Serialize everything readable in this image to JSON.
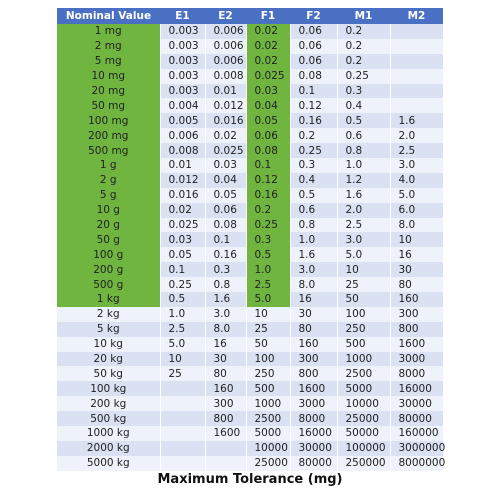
{
  "table": {
    "header": [
      "Nominal Value",
      "E1",
      "E2",
      "F1",
      "F2",
      "M1",
      "M2"
    ],
    "rows": [
      [
        "1 mg",
        "0.003",
        "0.006",
        "0.02",
        "0.06",
        "0.2",
        null
      ],
      [
        "2 mg",
        "0.003",
        "0.006",
        "0.02",
        "0.06",
        "0.2",
        null
      ],
      [
        "5 mg",
        "0.003",
        "0.006",
        "0.02",
        "0.06",
        "0.2",
        null
      ],
      [
        "10 mg",
        "0.003",
        "0.008",
        "0.025",
        "0.08",
        "0.25",
        null
      ],
      [
        "20 mg",
        "0.003",
        "0.01",
        "0.03",
        "0.1",
        "0.3",
        null
      ],
      [
        "50 mg",
        "0.004",
        "0.012",
        "0.04",
        "0.12",
        "0.4",
        null
      ],
      [
        "100 mg",
        "0.005",
        "0.016",
        "0.05",
        "0.16",
        "0.5",
        "1.6"
      ],
      [
        "200 mg",
        "0.006",
        "0.02",
        "0.06",
        "0.2",
        "0.6",
        "2.0"
      ],
      [
        "500 mg",
        "0.008",
        "0.025",
        "0.08",
        "0.25",
        "0.8",
        "2.5"
      ],
      [
        "1 g",
        "0.01",
        "0.03",
        "0.1",
        "0.3",
        "1.0",
        "3.0"
      ],
      [
        "2 g",
        "0.012",
        "0.04",
        "0.12",
        "0.4",
        "1.2",
        "4.0"
      ],
      [
        "5 g",
        "0.016",
        "0.05",
        "0.16",
        "0.5",
        "1.6",
        "5.0"
      ],
      [
        "10 g",
        "0.02",
        "0.06",
        "0.2",
        "0.6",
        "2.0",
        "6.0"
      ],
      [
        "20 g",
        "0.025",
        "0.08",
        "0.25",
        "0.8",
        "2.5",
        "8.0"
      ],
      [
        "50 g",
        "0.03",
        "0.1",
        "0.3",
        "1.0",
        "3.0",
        "10"
      ],
      [
        "100 g",
        "0.05",
        "0.16",
        "0.5",
        "1.6",
        "5.0",
        "16"
      ],
      [
        "200 g",
        "0.1",
        "0.3",
        "1.0",
        "3.0",
        "10",
        "30"
      ],
      [
        "500 g",
        "0.25",
        "0.8",
        "2.5",
        "8.0",
        "25",
        "80"
      ],
      [
        "1 kg",
        "0.5",
        "1.6",
        "5.0",
        "16",
        "50",
        "160"
      ],
      [
        "2 kg",
        "1.0",
        "3.0",
        "10",
        "30",
        "100",
        "300"
      ],
      [
        "5 kg",
        "2.5",
        "8.0",
        "25",
        "80",
        "250",
        "800"
      ],
      [
        "10 kg",
        "5.0",
        "16",
        "50",
        "160",
        "500",
        "1600"
      ],
      [
        "20 kg",
        "10",
        "30",
        "100",
        "300",
        "1000",
        "3000"
      ],
      [
        "50 kg",
        "25",
        "80",
        "250",
        "800",
        "2500",
        "8000"
      ],
      [
        "100 kg",
        null,
        "160",
        "500",
        "1600",
        "5000",
        "16000"
      ],
      [
        "200 kg",
        null,
        "300",
        "1000",
        "3000",
        "10000",
        "30000"
      ],
      [
        "500 kg",
        null,
        "800",
        "2500",
        "8000",
        "25000",
        "80000"
      ],
      [
        "1000 kg",
        null,
        "1600",
        "5000",
        "16000",
        "50000",
        "160000"
      ],
      [
        "2000 kg",
        null,
        null,
        "10000",
        "30000",
        "100000",
        "3000000"
      ],
      [
        "5000 kg",
        null,
        null,
        "25000",
        "80000",
        "250000",
        "8000000"
      ]
    ]
  },
  "caption": "Maximum Tolerance (mg)"
}
